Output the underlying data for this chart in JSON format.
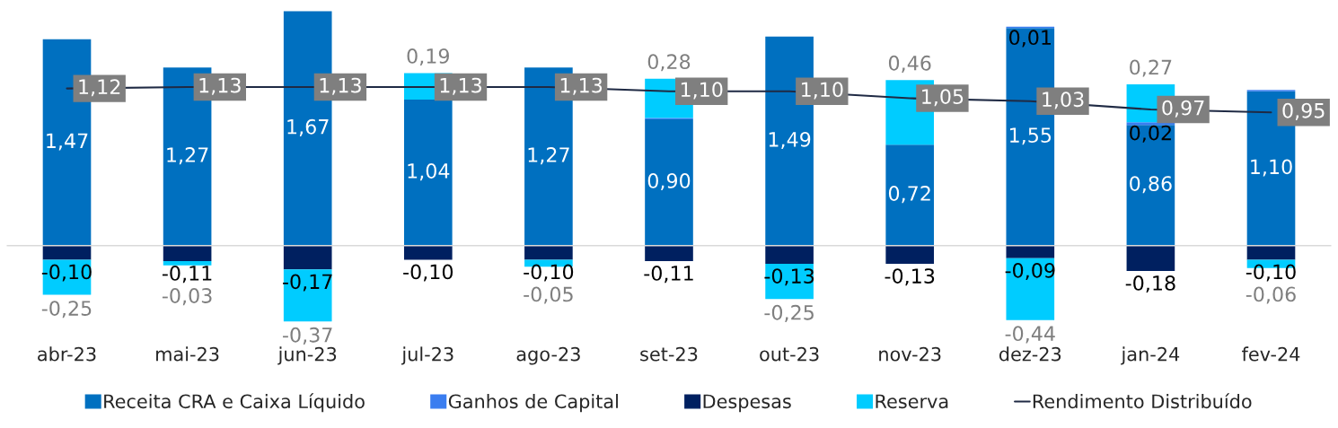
{
  "chart_data": {
    "type": "bar",
    "stacked": true,
    "categories": [
      "abr-23",
      "mai-23",
      "jun-23",
      "jul-23",
      "ago-23",
      "set-23",
      "out-23",
      "nov-23",
      "dez-23",
      "jan-24",
      "fev-24"
    ],
    "series": [
      {
        "name": "Receita CRA e Caixa Líquido",
        "color": "#0070c0",
        "values": [
          1.47,
          1.27,
          1.67,
          1.04,
          1.27,
          0.9,
          1.49,
          0.72,
          1.55,
          0.86,
          1.1
        ],
        "value_labels": [
          "1,47",
          "1,27",
          "1,67",
          "1,04",
          "1,27",
          "0,90",
          "1,49",
          "0,72",
          "1,55",
          "0,86",
          "1,10"
        ]
      },
      {
        "name": "Ganhos de Capital",
        "color": "#3a7df0",
        "values": [
          0,
          0,
          0,
          0,
          0,
          0.01,
          0,
          0,
          0.01,
          0.02,
          0.01
        ],
        "value_labels": [
          null,
          null,
          null,
          null,
          null,
          null,
          null,
          null,
          "0,01",
          "0,02",
          null
        ]
      },
      {
        "name": "Despesas",
        "color": "#002060",
        "values": [
          -0.1,
          -0.11,
          -0.17,
          -0.1,
          -0.1,
          -0.11,
          -0.13,
          -0.13,
          -0.09,
          -0.18,
          -0.1
        ],
        "value_labels": [
          "-0,10",
          "-0,11",
          "-0,17",
          "-0,10",
          "-0,10",
          "-0,11",
          "-0,13",
          "-0,13",
          "-0,09",
          "-0,18",
          "-0,10"
        ]
      },
      {
        "name": "Reserva",
        "color": "#00ccff",
        "values": [
          -0.25,
          -0.03,
          -0.37,
          0.19,
          -0.05,
          0.28,
          -0.25,
          0.46,
          -0.44,
          0.27,
          -0.06
        ],
        "value_labels": [
          "-0,25",
          "-0,03",
          "-0,37",
          "0,19",
          "-0,05",
          "0,28",
          "-0,25",
          "0,46",
          "-0,44",
          "0,27",
          "-0,06"
        ]
      },
      {
        "name": "Rendimento Distribuído",
        "type": "line",
        "color": "#1f2a44",
        "values": [
          1.12,
          1.13,
          1.13,
          1.13,
          1.13,
          1.1,
          1.1,
          1.05,
          1.03,
          0.97,
          0.95
        ],
        "value_labels": [
          "1,12",
          "1,13",
          "1,13",
          "1,13",
          "1,13",
          "1,10",
          "1,10",
          "1,05",
          "1,03",
          "0,97",
          "0,95"
        ]
      }
    ],
    "legend": "bottom",
    "grid": false,
    "marker": "none",
    "line_style": "solid"
  }
}
